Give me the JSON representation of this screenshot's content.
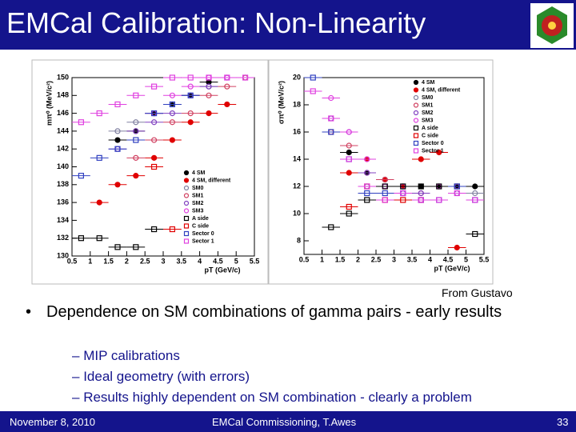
{
  "header": {
    "title": "EMCal Calibration: Non-Linearity"
  },
  "chart_data": [
    {
      "type": "scatter",
      "xlabel": "pT (GeV/c)",
      "ylabel": "mπ⁰ (MeV/c²)",
      "xlim": [
        0.5,
        5.5
      ],
      "xticks": [
        0.5,
        1,
        1.5,
        2,
        2.5,
        3,
        3.5,
        4,
        4.5,
        5,
        5.5
      ],
      "ylim": [
        130,
        150
      ],
      "yticks": [
        130,
        132,
        134,
        136,
        138,
        140,
        142,
        144,
        146,
        148,
        150
      ],
      "legend": "lower right",
      "x": [
        0.75,
        1.25,
        1.75,
        2.25,
        2.75,
        3.25,
        3.75,
        4.25,
        4.75,
        5.25
      ],
      "series": [
        {
          "name": "4 SM",
          "color": "#000000",
          "marker": "circle",
          "filled": true,
          "values": [
            null,
            null,
            143,
            144,
            146,
            147,
            148,
            149.5,
            null,
            null
          ]
        },
        {
          "name": "4 SM, different",
          "color": "#e00000",
          "marker": "circle",
          "filled": true,
          "values": [
            null,
            136,
            138,
            139,
            141,
            143,
            145,
            146,
            147,
            null
          ]
        },
        {
          "name": "SM0",
          "color": "#8080a0",
          "marker": "circle",
          "filled": false,
          "values": [
            null,
            null,
            144,
            145,
            146,
            147,
            148,
            149,
            150,
            150
          ]
        },
        {
          "name": "SM1",
          "color": "#d04060",
          "marker": "circle",
          "filled": false,
          "values": [
            null,
            null,
            null,
            141,
            143,
            145,
            146,
            148,
            149,
            150
          ]
        },
        {
          "name": "SM2",
          "color": "#8040c0",
          "marker": "circle",
          "filled": false,
          "values": [
            null,
            null,
            142,
            144,
            145,
            146,
            148,
            149,
            150,
            null
          ]
        },
        {
          "name": "SM3",
          "color": "#e040e0",
          "marker": "circle",
          "filled": false,
          "values": [
            null,
            null,
            null,
            null,
            146,
            148,
            149,
            150,
            150,
            null
          ]
        },
        {
          "name": "A side",
          "color": "#000000",
          "marker": "square",
          "filled": false,
          "values": [
            132,
            132,
            131,
            131,
            133,
            null,
            null,
            null,
            null,
            null
          ]
        },
        {
          "name": "C side",
          "color": "#e00000",
          "marker": "square",
          "filled": false,
          "values": [
            null,
            null,
            null,
            null,
            140,
            133,
            null,
            null,
            null,
            null
          ]
        },
        {
          "name": "Sector 0",
          "color": "#3040c0",
          "marker": "square",
          "filled": false,
          "values": [
            139,
            141,
            142,
            143,
            146,
            147,
            148,
            null,
            null,
            null
          ]
        },
        {
          "name": "Sector 1",
          "color": "#e040e0",
          "marker": "square",
          "filled": false,
          "values": [
            145,
            146,
            147,
            148,
            149,
            150,
            150,
            150,
            150,
            150
          ]
        }
      ]
    },
    {
      "type": "scatter",
      "xlabel": "pT (GeV/c)",
      "ylabel": "σπ⁰ (MeV/c²)",
      "xlim": [
        0.5,
        5.5
      ],
      "xticks": [
        0.5,
        1,
        1.5,
        2,
        2.5,
        3,
        3.5,
        4,
        4.5,
        5,
        5.5
      ],
      "ylim": [
        7,
        20
      ],
      "yticks": [
        8,
        10,
        12,
        14,
        16,
        18,
        20
      ],
      "legend": "upper right",
      "x": [
        0.75,
        1.25,
        1.75,
        2.25,
        2.75,
        3.25,
        3.75,
        4.25,
        4.75,
        5.25
      ],
      "series": [
        {
          "name": "4 SM",
          "color": "#000000",
          "marker": "circle",
          "filled": true,
          "values": [
            null,
            null,
            14.5,
            13,
            12.5,
            12,
            12,
            12,
            12,
            12
          ]
        },
        {
          "name": "4 SM, different",
          "color": "#e00000",
          "marker": "circle",
          "filled": true,
          "values": [
            null,
            null,
            13,
            14,
            12.5,
            12,
            14,
            14.5,
            7.5,
            null
          ]
        },
        {
          "name": "SM0",
          "color": "#8080a0",
          "marker": "circle",
          "filled": false,
          "values": [
            null,
            null,
            null,
            12,
            12,
            12,
            11.5,
            12,
            12,
            11.5
          ]
        },
        {
          "name": "SM1",
          "color": "#d04060",
          "marker": "circle",
          "filled": false,
          "values": [
            null,
            16,
            15,
            13,
            12.5,
            12,
            11.5,
            12,
            12,
            null
          ]
        },
        {
          "name": "SM2",
          "color": "#8040c0",
          "marker": "circle",
          "filled": false,
          "values": [
            null,
            17,
            16,
            13,
            12,
            11.5,
            11.5,
            12,
            11.5,
            null
          ]
        },
        {
          "name": "SM3",
          "color": "#e040e0",
          "marker": "circle",
          "filled": false,
          "values": [
            null,
            18.5,
            16,
            14,
            12,
            12,
            11,
            12,
            12,
            null
          ]
        },
        {
          "name": "A side",
          "color": "#000000",
          "marker": "square",
          "filled": false,
          "values": [
            null,
            9,
            10,
            11,
            12,
            12,
            12,
            12,
            12,
            8.5
          ]
        },
        {
          "name": "C side",
          "color": "#e00000",
          "marker": "square",
          "filled": false,
          "values": [
            null,
            null,
            10.5,
            12,
            11,
            11,
            11,
            null,
            null,
            null
          ]
        },
        {
          "name": "Sector 0",
          "color": "#3040c0",
          "marker": "square",
          "filled": false,
          "values": [
            20,
            16,
            14,
            11.5,
            11.5,
            11.5,
            11,
            11,
            12,
            11
          ]
        },
        {
          "name": "Sector 1",
          "color": "#e040e0",
          "marker": "square",
          "filled": false,
          "values": [
            19,
            17,
            14,
            12,
            11,
            11.5,
            11,
            11,
            11.5,
            11
          ]
        }
      ]
    }
  ],
  "caption": "From Gustavo",
  "bullets": {
    "main": "Dependence on SM combinations of gamma pairs - early results",
    "sub": [
      "MIP calibrations",
      "Ideal geometry (with errors)",
      "Results highly dependent on SM combination - clearly a problem"
    ]
  },
  "footer": {
    "date": "November 8, 2010",
    "event": "EMCal Commissioning, T.Awes",
    "page": 33
  }
}
